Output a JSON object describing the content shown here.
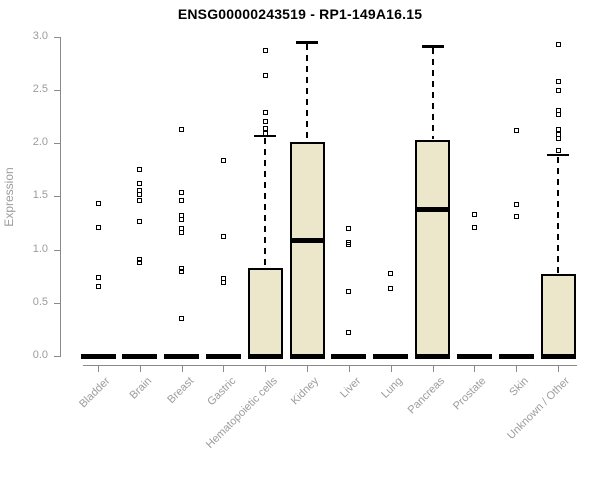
{
  "chart_data": {
    "type": "boxplot",
    "title": "ENSG00000243519 - RP1-149A16.15",
    "ylabel": "Expression",
    "xlabel": "",
    "ylim": [
      0.0,
      3.0
    ],
    "ytick_labels": [
      "0.0",
      "0.5",
      "1.0",
      "1.5",
      "2.0",
      "2.5",
      "3.0"
    ],
    "ytick_values": [
      0.0,
      0.5,
      1.0,
      1.5,
      2.0,
      2.5,
      3.0
    ],
    "grid": "off",
    "legend": "none",
    "marker": "open-square",
    "categories": [
      "Bladder",
      "Brain",
      "Breast",
      "Gastric",
      "Hematopoietic cells",
      "Kidney",
      "Liver",
      "Lung",
      "Pancreas",
      "Prostate",
      "Skin",
      "Unknown / Other"
    ],
    "boxes": [
      {
        "label": "Bladder",
        "q1": 0,
        "q3": 0,
        "median": 0,
        "whisker_low": 0,
        "whisker_high": 0,
        "outliers": [
          1.43,
          1.21,
          0.74,
          0.65
        ]
      },
      {
        "label": "Brain",
        "q1": 0,
        "q3": 0,
        "median": 0,
        "whisker_low": 0,
        "whisker_high": 0,
        "outliers": [
          1.75,
          1.62,
          1.56,
          1.52,
          1.46,
          1.26,
          0.91,
          0.88
        ]
      },
      {
        "label": "Breast",
        "q1": 0,
        "q3": 0,
        "median": 0,
        "whisker_low": 0,
        "whisker_high": 0,
        "outliers": [
          2.13,
          1.54,
          1.46,
          1.32,
          1.28,
          1.2,
          1.16,
          0.82,
          0.79,
          0.35
        ]
      },
      {
        "label": "Gastric",
        "q1": 0,
        "q3": 0,
        "median": 0,
        "whisker_low": 0,
        "whisker_high": 0,
        "outliers": [
          1.84,
          1.12,
          0.73,
          0.69
        ]
      },
      {
        "label": "Hematopoietic cells",
        "q1": 0,
        "q3": 0.83,
        "median": 0,
        "whisker_low": 0,
        "whisker_high": 2.07,
        "outliers": [
          2.87,
          2.64,
          2.29,
          2.2,
          2.14,
          2.09
        ]
      },
      {
        "label": "Kidney",
        "q1": 0,
        "q3": 2.01,
        "median": 1.09,
        "whisker_low": 0,
        "whisker_high": 2.95,
        "outliers": []
      },
      {
        "label": "Liver",
        "q1": 0,
        "q3": 0,
        "median": 0,
        "whisker_low": 0,
        "whisker_high": 0,
        "outliers": [
          1.2,
          1.07,
          1.05,
          0.61,
          0.22
        ]
      },
      {
        "label": "Lung",
        "q1": 0,
        "q3": 0,
        "median": 0,
        "whisker_low": 0,
        "whisker_high": 0,
        "outliers": [
          0.78,
          0.63
        ]
      },
      {
        "label": "Pancreas",
        "q1": 0,
        "q3": 2.03,
        "median": 1.38,
        "whisker_low": 0,
        "whisker_high": 2.91,
        "outliers": []
      },
      {
        "label": "Prostate",
        "q1": 0,
        "q3": 0,
        "median": 0,
        "whisker_low": 0,
        "whisker_high": 0,
        "outliers": [
          1.33,
          1.21
        ]
      },
      {
        "label": "Skin",
        "q1": 0,
        "q3": 0,
        "median": 0,
        "whisker_low": 0,
        "whisker_high": 0,
        "outliers": [
          2.12,
          1.42,
          1.31
        ]
      },
      {
        "label": "Unknown / Other",
        "q1": 0,
        "q3": 0.77,
        "median": 0,
        "whisker_low": 0,
        "whisker_high": 1.89,
        "outliers": [
          2.93,
          2.58,
          2.5,
          2.31,
          2.27,
          2.13,
          2.08,
          2.04,
          1.93
        ]
      }
    ],
    "colors": {
      "box_fill": "#ece7cb",
      "box_border": "#000000",
      "whisker": "#000000",
      "axis": "#8a8a8a",
      "tick_text": "#9c9c9c",
      "title_text": "#000000"
    }
  }
}
